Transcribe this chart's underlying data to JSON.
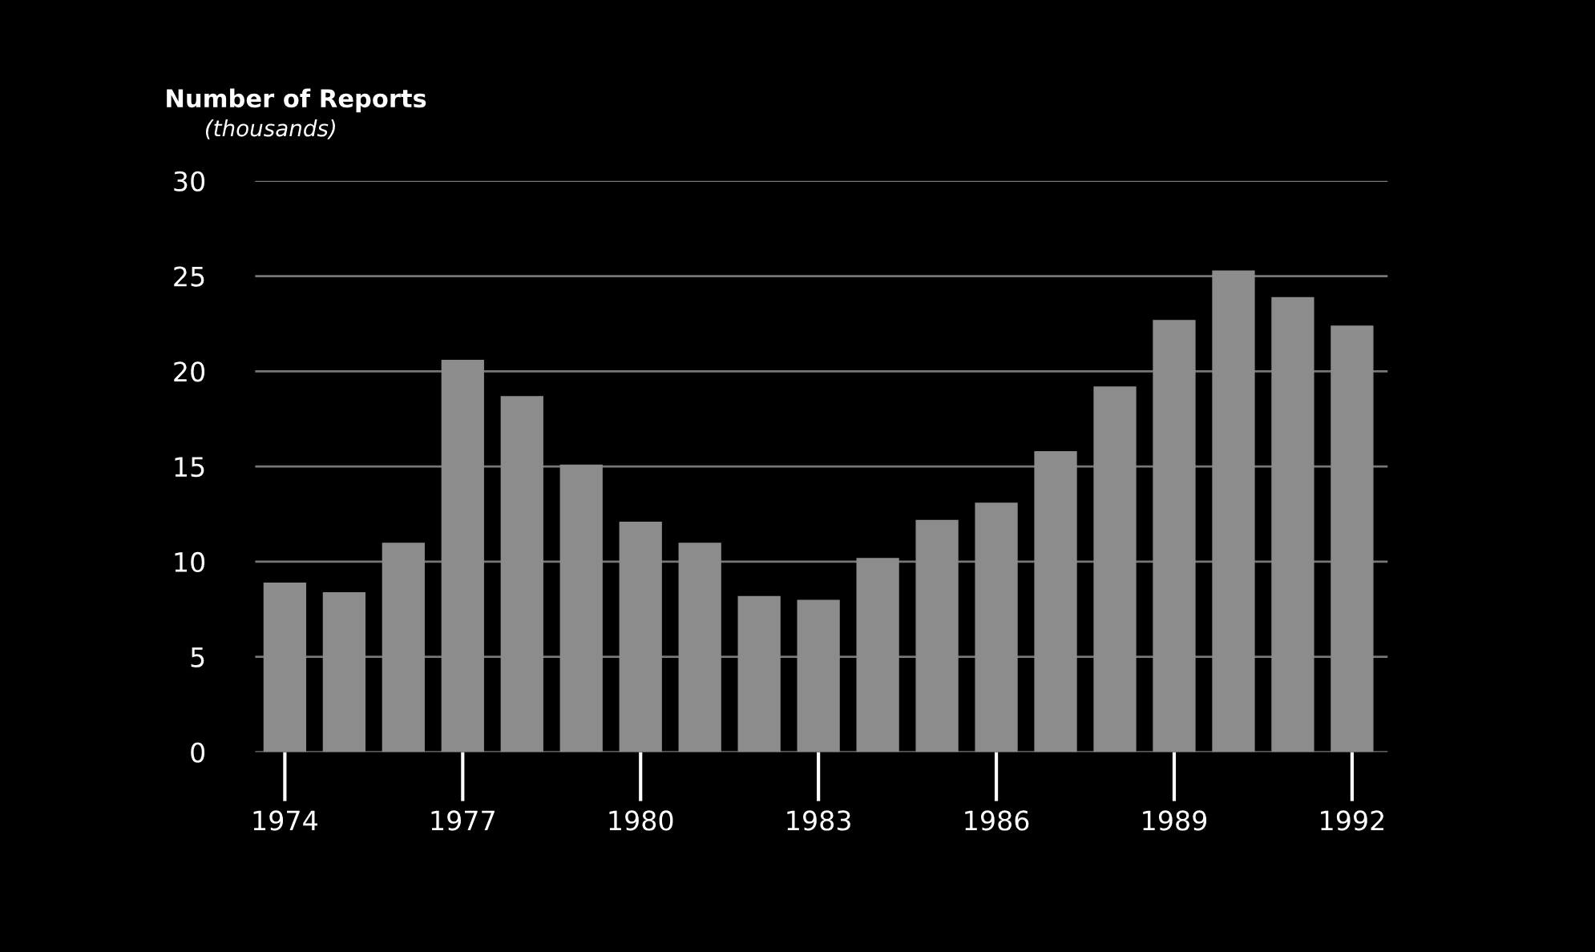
{
  "chart_data": {
    "type": "bar",
    "ylabel": "Number of Reports",
    "annotations": [
      "(thousands)"
    ],
    "x": [
      1974,
      1975,
      1976,
      1977,
      1978,
      1979,
      1980,
      1981,
      1982,
      1983,
      1984,
      1985,
      1986,
      1987,
      1988,
      1989,
      1990,
      1991,
      1992
    ],
    "values": [
      8.9,
      8.4,
      11.0,
      20.6,
      18.7,
      15.1,
      12.1,
      11.0,
      8.2,
      8.0,
      10.2,
      12.2,
      13.1,
      15.8,
      19.2,
      22.7,
      25.3,
      23.9,
      22.4
    ],
    "color": "#8c8c8c",
    "xlim": [
      1973.5,
      1992.6
    ],
    "xticks": [
      1974,
      1977,
      1980,
      1983,
      1986,
      1989,
      1992
    ],
    "ylim": [
      0,
      30
    ],
    "yticks": [
      0,
      5,
      10,
      15,
      20,
      25,
      30
    ],
    "grid": "y"
  }
}
